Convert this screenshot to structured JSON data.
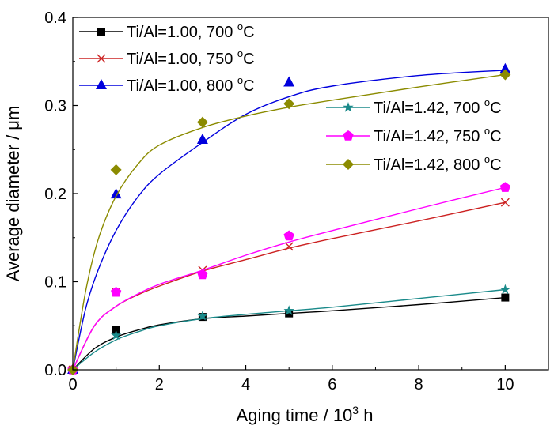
{
  "chart_data": {
    "type": "scatter",
    "title": "",
    "xlabel": "Aging time / 10",
    "xlabel_sup": "3",
    "xlabel_suffix": " h",
    "ylabel": "Average diameter / μm",
    "xlim": [
      0,
      11
    ],
    "ylim": [
      0,
      0.4
    ],
    "xticks": [
      0,
      2,
      4,
      6,
      8,
      10
    ],
    "yticks": [
      0.0,
      0.1,
      0.2,
      0.3,
      0.4
    ],
    "xtick_labels": [
      "0",
      "2",
      "4",
      "6",
      "8",
      "10"
    ],
    "ytick_labels": [
      "0.0",
      "0.1",
      "0.2",
      "0.3",
      "0.4"
    ],
    "grid": false,
    "legend_placement": "top-left and right",
    "series": [
      {
        "name": "Ti/Al=1.00, 700",
        "unit_sup": "o",
        "unit": "C",
        "marker": "square",
        "color": "#000000",
        "x": [
          0,
          1,
          3,
          5,
          10
        ],
        "y": [
          0,
          0.045,
          0.06,
          0.064,
          0.082
        ],
        "fit": [
          [
            0,
            0
          ],
          [
            0.5,
            0.024
          ],
          [
            1,
            0.037
          ],
          [
            1.5,
            0.045
          ],
          [
            2,
            0.051
          ],
          [
            3,
            0.058
          ],
          [
            4,
            0.061
          ],
          [
            5,
            0.064
          ],
          [
            6,
            0.067
          ],
          [
            8,
            0.074
          ],
          [
            10,
            0.082
          ]
        ]
      },
      {
        "name": "Ti/Al=1.00, 750",
        "unit_sup": "o",
        "unit": "C",
        "marker": "x",
        "color": "#cc2222",
        "x": [
          0,
          1,
          3,
          5,
          10
        ],
        "y": [
          0,
          0.088,
          0.113,
          0.14,
          0.19
        ],
        "fit": [
          [
            0,
            0
          ],
          [
            0.5,
            0.05
          ],
          [
            1,
            0.072
          ],
          [
            1.5,
            0.085
          ],
          [
            2,
            0.095
          ],
          [
            3,
            0.112
          ],
          [
            4,
            0.125
          ],
          [
            5,
            0.138
          ],
          [
            6,
            0.149
          ],
          [
            8,
            0.169
          ],
          [
            10,
            0.19
          ]
        ]
      },
      {
        "name": "Ti/Al=1.00, 800",
        "unit_sup": "o",
        "unit": "C",
        "marker": "triangle",
        "color": "#0000dd",
        "x": [
          0,
          1,
          3,
          5,
          10
        ],
        "y": [
          0,
          0.199,
          0.261,
          0.326,
          0.341
        ],
        "fit": [
          [
            0,
            0
          ],
          [
            0.3,
            0.07
          ],
          [
            0.6,
            0.115
          ],
          [
            1,
            0.158
          ],
          [
            1.5,
            0.196
          ],
          [
            2,
            0.222
          ],
          [
            3,
            0.258
          ],
          [
            4,
            0.29
          ],
          [
            5,
            0.31
          ],
          [
            6,
            0.322
          ],
          [
            8,
            0.334
          ],
          [
            10,
            0.34
          ]
        ]
      },
      {
        "name": "Ti/Al=1.42, 700",
        "unit_sup": "o",
        "unit": "C",
        "marker": "star",
        "color": "#1a8a8a",
        "x": [
          0,
          1,
          3,
          5,
          10
        ],
        "y": [
          0,
          0.039,
          0.061,
          0.067,
          0.091
        ],
        "fit": [
          [
            0,
            0
          ],
          [
            0.5,
            0.02
          ],
          [
            1,
            0.034
          ],
          [
            1.5,
            0.043
          ],
          [
            2,
            0.05
          ],
          [
            3,
            0.058
          ],
          [
            4,
            0.063
          ],
          [
            5,
            0.067
          ],
          [
            6,
            0.071
          ],
          [
            8,
            0.081
          ],
          [
            10,
            0.091
          ]
        ]
      },
      {
        "name": "Ti/Al=1.42, 750",
        "unit_sup": "o",
        "unit": "C",
        "marker": "pentagon",
        "color": "#ff00ff",
        "x": [
          0,
          1,
          3,
          5,
          10
        ],
        "y": [
          0,
          0.088,
          0.108,
          0.152,
          0.207
        ],
        "fit": [
          [
            0,
            0
          ],
          [
            0.5,
            0.05
          ],
          [
            1,
            0.072
          ],
          [
            1.5,
            0.086
          ],
          [
            2,
            0.097
          ],
          [
            3,
            0.113
          ],
          [
            4,
            0.13
          ],
          [
            5,
            0.145
          ],
          [
            6,
            0.158
          ],
          [
            8,
            0.183
          ],
          [
            10,
            0.207
          ]
        ]
      },
      {
        "name": "Ti/Al=1.42, 800",
        "unit_sup": "o",
        "unit": "C",
        "marker": "diamond",
        "color": "#8b8b00",
        "x": [
          0,
          1,
          3,
          5,
          10
        ],
        "y": [
          0,
          0.227,
          0.281,
          0.302,
          0.335
        ],
        "fit": [
          [
            0,
            0
          ],
          [
            0.3,
            0.09
          ],
          [
            0.6,
            0.15
          ],
          [
            1,
            0.197
          ],
          [
            1.5,
            0.233
          ],
          [
            2,
            0.255
          ],
          [
            3,
            0.275
          ],
          [
            4,
            0.288
          ],
          [
            5,
            0.298
          ],
          [
            6,
            0.306
          ],
          [
            8,
            0.321
          ],
          [
            10,
            0.335
          ]
        ]
      }
    ]
  }
}
